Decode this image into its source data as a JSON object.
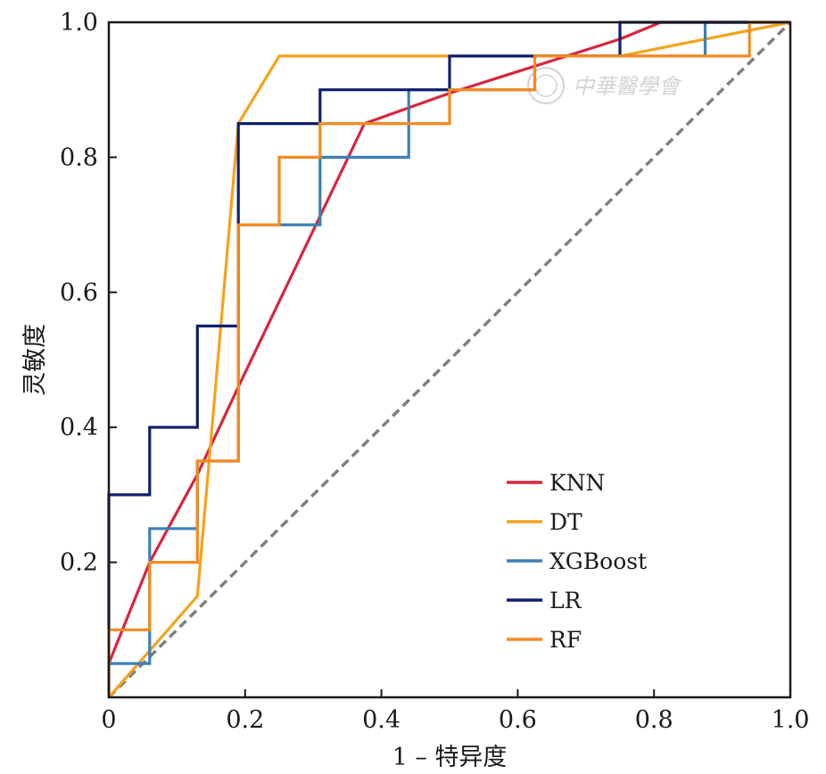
{
  "chart_data": {
    "type": "line",
    "xlabel": "1 – 特异度",
    "ylabel": "灵敏度",
    "xlim": [
      0,
      1
    ],
    "ylim": [
      0,
      1
    ],
    "xticks": [
      "0",
      "0.2",
      "0.4",
      "0.6",
      "0.8",
      "1.0"
    ],
    "yticks": [
      "0.2",
      "0.4",
      "0.6",
      "0.8",
      "1.0"
    ],
    "grid": false,
    "legend_position": "bottom-right",
    "watermark": "中華醫學會",
    "diagonal": {
      "style": "dashed",
      "color": "#7f7f7f",
      "x": [
        0,
        1
      ],
      "y": [
        0,
        1
      ]
    },
    "series": [
      {
        "name": "KNN",
        "color": "#d7263d",
        "x": [
          0,
          0.06,
          0.13,
          0.19,
          0.375,
          0.5,
          0.625,
          0.75,
          0.81,
          1.0
        ],
        "y": [
          0.05,
          0.2,
          0.33,
          0.46,
          0.85,
          0.895,
          0.935,
          0.975,
          1.0,
          1.0
        ]
      },
      {
        "name": "DT",
        "color": "#f5a21b",
        "x": [
          0,
          0.13,
          0.19,
          0.25,
          0.5,
          0.625,
          0.75,
          1.0
        ],
        "y": [
          0,
          0.15,
          0.85,
          0.95,
          0.95,
          0.95,
          0.95,
          1.0
        ]
      },
      {
        "name": "XGBoost",
        "color": "#3b7fb6",
        "x": [
          0,
          0,
          0.06,
          0.06,
          0.13,
          0.13,
          0.19,
          0.19,
          0.31,
          0.31,
          0.44,
          0.44,
          0.5,
          0.5,
          0.625,
          0.625,
          0.875,
          0.875,
          1.0
        ],
        "y": [
          0,
          0.05,
          0.05,
          0.25,
          0.25,
          0.35,
          0.35,
          0.7,
          0.7,
          0.8,
          0.8,
          0.9,
          0.9,
          0.9,
          0.9,
          0.95,
          0.95,
          1.0,
          1.0
        ]
      },
      {
        "name": "LR",
        "color": "#0f1f6e",
        "x": [
          0,
          0,
          0.06,
          0.06,
          0.13,
          0.13,
          0.19,
          0.19,
          0.31,
          0.31,
          0.5,
          0.5,
          0.75,
          0.75,
          0.875,
          1.0
        ],
        "y": [
          0.1,
          0.3,
          0.3,
          0.4,
          0.4,
          0.55,
          0.55,
          0.85,
          0.85,
          0.9,
          0.9,
          0.95,
          0.95,
          1.0,
          1.0,
          1.0
        ]
      },
      {
        "name": "RF",
        "color": "#f58a1f",
        "x": [
          0,
          0,
          0.06,
          0.06,
          0.13,
          0.13,
          0.19,
          0.19,
          0.25,
          0.25,
          0.31,
          0.31,
          0.5,
          0.5,
          0.625,
          0.625,
          0.94,
          0.94,
          1.0
        ],
        "y": [
          0,
          0.1,
          0.1,
          0.2,
          0.2,
          0.35,
          0.35,
          0.7,
          0.7,
          0.8,
          0.8,
          0.85,
          0.85,
          0.9,
          0.9,
          0.95,
          0.95,
          1.0,
          1.0
        ]
      }
    ]
  }
}
